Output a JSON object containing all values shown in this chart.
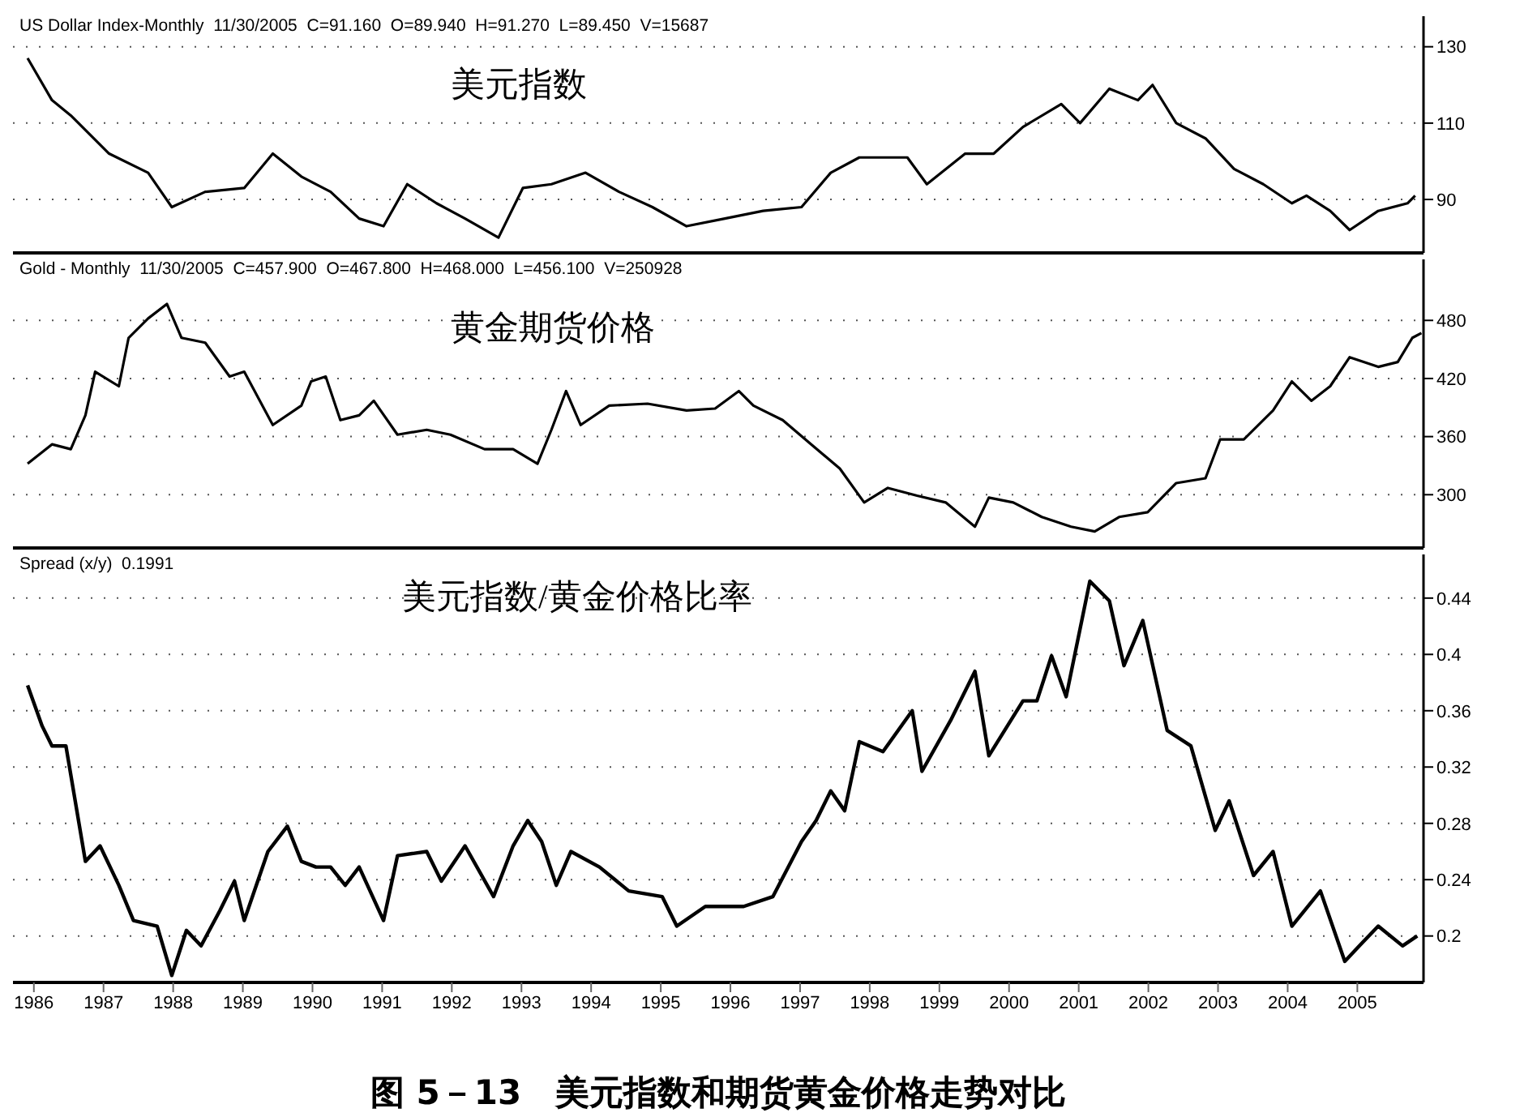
{
  "chart_data": [
    {
      "type": "line",
      "title": "美元指数",
      "annotations": [
        "US Dollar Index-Monthly  11/30/2005  C=91.160  O=89.940  H=91.270  L=89.450  V=15687"
      ],
      "xlim": [
        1985.7,
        2005.95
      ],
      "ylim": [
        76,
        138
      ],
      "yticks": [
        90,
        110,
        130
      ],
      "grid": "y",
      "tick_labels": "y",
      "marker": "none",
      "line_style": "solid",
      "series": [
        {
          "color": "#000000",
          "x": [
            1985.91,
            1986.26,
            1986.53,
            1987.08,
            1987.64,
            1987.98,
            1988.46,
            1989.02,
            1989.43,
            1989.84,
            1990.26,
            1990.67,
            1991.02,
            1991.36,
            1991.78,
            1992.19,
            1992.67,
            1993.02,
            1993.43,
            1993.92,
            1994.4,
            1994.88,
            1995.37,
            1995.92,
            1996.47,
            1997.02,
            1997.44,
            1997.85,
            1998.54,
            1998.82,
            1999.37,
            1999.78,
            2000.2,
            2000.75,
            2001.02,
            2001.44,
            2001.85,
            2002.06,
            2002.4,
            2002.82,
            2003.23,
            2003.65,
            2004.06,
            2004.27,
            2004.61,
            2004.89,
            2005.3,
            2005.72,
            2005.83
          ],
          "values": [
            127,
            116,
            112,
            102,
            97,
            88,
            92,
            93,
            102,
            96,
            92,
            85,
            83,
            94,
            89,
            85,
            80,
            93,
            94,
            97,
            92,
            88,
            83,
            85,
            87,
            88,
            97,
            101,
            101,
            94,
            102,
            102,
            109,
            115,
            110,
            119,
            116,
            120,
            110,
            106,
            98,
            94,
            89,
            91,
            87,
            82,
            87,
            89,
            91
          ]
        }
      ]
    },
    {
      "type": "line",
      "title": "黄金期货价格",
      "annotations": [
        "Gold - Monthly  11/30/2005  C=457.900  O=467.800  H=468.000  L=456.100  V=250928"
      ],
      "xlim": [
        1985.7,
        2005.95
      ],
      "ylim": [
        245,
        543
      ],
      "yticks": [
        300,
        360,
        420,
        480
      ],
      "grid": "y",
      "tick_labels": "y",
      "marker": "none",
      "line_style": "solid",
      "series": [
        {
          "color": "#000000",
          "x": [
            1985.91,
            1986.26,
            1986.53,
            1986.74,
            1986.88,
            1987.22,
            1987.36,
            1987.64,
            1987.91,
            1988.12,
            1988.46,
            1988.81,
            1989.02,
            1989.43,
            1989.84,
            1989.98,
            1990.19,
            1990.4,
            1990.67,
            1990.88,
            1991.22,
            1991.64,
            1991.98,
            1992.47,
            1992.88,
            1993.23,
            1993.43,
            1993.64,
            1993.85,
            1994.26,
            1994.81,
            1995.37,
            1995.78,
            1996.12,
            1996.33,
            1996.75,
            1997.16,
            1997.57,
            1997.92,
            1998.26,
            1998.68,
            1999.09,
            1999.51,
            1999.71,
            2000.06,
            2000.47,
            2000.89,
            2001.23,
            2001.58,
            2001.99,
            2002.4,
            2002.82,
            2003.03,
            2003.37,
            2003.79,
            2004.06,
            2004.34,
            2004.61,
            2004.89,
            2005.3,
            2005.58,
            2005.79,
            2005.92
          ],
          "values": [
            332,
            352,
            347,
            382,
            427,
            412,
            462,
            482,
            497,
            462,
            457,
            422,
            427,
            372,
            392,
            417,
            422,
            377,
            382,
            397,
            362,
            367,
            362,
            347,
            347,
            332,
            367,
            407,
            372,
            392,
            394,
            387,
            389,
            407,
            392,
            377,
            352,
            327,
            292,
            307,
            299,
            292,
            267,
            297,
            292,
            277,
            267,
            262,
            277,
            282,
            312,
            317,
            357,
            357,
            387,
            417,
            397,
            412,
            442,
            432,
            437,
            462,
            467
          ]
        }
      ]
    },
    {
      "type": "line",
      "title": "美元指数/黄金价格比率",
      "annotations": [
        "Spread (x/y)  0.1991",
        "图 5－13　美元指数和期货黄金价格走势对比"
      ],
      "xlim": [
        1985.7,
        2005.95
      ],
      "xticks": [
        1986,
        1987,
        1988,
        1989,
        1990,
        1991,
        1992,
        1993,
        1994,
        1995,
        1996,
        1997,
        1998,
        1999,
        2000,
        2001,
        2002,
        2003,
        2004,
        2005
      ],
      "ylim": [
        0.167,
        0.471
      ],
      "yticks": [
        0.2,
        0.24,
        0.28,
        0.32,
        0.36,
        0.4,
        0.44
      ],
      "grid": "y",
      "marker": "none",
      "line_style": "solid",
      "series": [
        {
          "color": "#000000",
          "x": [
            1985.91,
            1986.12,
            1986.26,
            1986.46,
            1986.74,
            1986.95,
            1987.22,
            1987.43,
            1987.77,
            1987.98,
            1988.19,
            1988.4,
            1988.67,
            1988.88,
            1989.02,
            1989.36,
            1989.64,
            1989.84,
            1990.05,
            1990.26,
            1990.47,
            1990.67,
            1991.02,
            1991.22,
            1991.64,
            1991.85,
            1992.19,
            1992.6,
            1992.88,
            1993.09,
            1993.29,
            1993.5,
            1993.71,
            1994.12,
            1994.54,
            1995.02,
            1995.23,
            1995.64,
            1996.19,
            1996.61,
            1997.02,
            1997.23,
            1997.44,
            1997.64,
            1997.85,
            1998.19,
            1998.61,
            1998.75,
            1999.16,
            1999.51,
            1999.71,
            2000.2,
            2000.4,
            2000.61,
            2000.82,
            2001.16,
            2001.44,
            2001.65,
            2001.92,
            2002.27,
            2002.61,
            2002.96,
            2003.16,
            2003.51,
            2003.79,
            2004.06,
            2004.47,
            2004.82,
            2005.03,
            2005.3,
            2005.65,
            2005.86
          ],
          "values": [
            0.378,
            0.349,
            0.335,
            0.335,
            0.253,
            0.264,
            0.236,
            0.211,
            0.207,
            0.172,
            0.204,
            0.193,
            0.218,
            0.239,
            0.211,
            0.26,
            0.278,
            0.253,
            0.249,
            0.249,
            0.236,
            0.249,
            0.211,
            0.257,
            0.26,
            0.239,
            0.264,
            0.228,
            0.264,
            0.282,
            0.267,
            0.236,
            0.26,
            0.249,
            0.232,
            0.228,
            0.207,
            0.221,
            0.221,
            0.228,
            0.267,
            0.282,
            0.303,
            0.289,
            0.338,
            0.331,
            0.36,
            0.317,
            0.353,
            0.388,
            0.328,
            0.367,
            0.367,
            0.399,
            0.37,
            0.452,
            0.438,
            0.392,
            0.424,
            0.346,
            0.335,
            0.275,
            0.296,
            0.243,
            0.26,
            0.207,
            0.232,
            0.182,
            0.193,
            0.207,
            0.193,
            0.2
          ]
        }
      ]
    }
  ]
}
